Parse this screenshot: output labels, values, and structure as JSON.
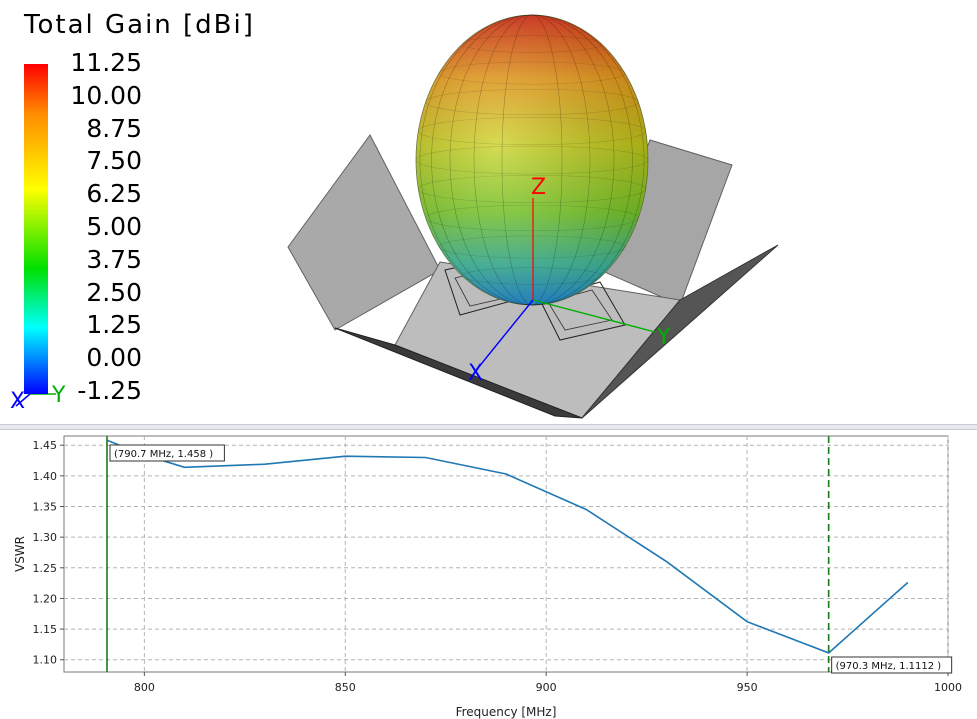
{
  "legend": {
    "title": "Total Gain [dBi]",
    "ticks": [
      "11.25",
      "10.00",
      "8.75",
      "7.50",
      "6.25",
      "5.00",
      "3.75",
      "2.50",
      "1.25",
      "0.00",
      "-1.25"
    ]
  },
  "axes3d": {
    "x_label": "X",
    "y_label": "Y",
    "z_label": "Z"
  },
  "colors": {
    "axis_x": "#0000ff",
    "axis_y": "#00b000",
    "axis_z": "#ff0000",
    "curve": "#1f78b4",
    "marker": "#1a7a1a"
  },
  "chart_data": {
    "type": "line",
    "title": "",
    "xlabel": "Frequency [MHz]",
    "ylabel": "VSWR",
    "xlim": [
      780,
      1000
    ],
    "ylim": [
      1.08,
      1.465
    ],
    "xticks": [
      800,
      850,
      900,
      950,
      1000
    ],
    "yticks": [
      1.1,
      1.15,
      1.2,
      1.25,
      1.3,
      1.35,
      1.4,
      1.45
    ],
    "grid": true,
    "series": [
      {
        "name": "",
        "x": [
          790.7,
          800,
          810,
          830,
          850,
          870,
          890,
          910,
          930,
          950,
          970.3,
          990
        ],
        "y": [
          1.458,
          1.434,
          1.414,
          1.419,
          1.432,
          1.43,
          1.403,
          1.345,
          1.26,
          1.162,
          1.1112,
          1.226
        ]
      }
    ],
    "markers": [
      {
        "x": 790.7,
        "style": "solid",
        "label": "(790.7 MHz, 1.458 )"
      },
      {
        "x": 970.3,
        "style": "dashed",
        "label": "(970.3 MHz, 1.1112 )"
      }
    ]
  }
}
